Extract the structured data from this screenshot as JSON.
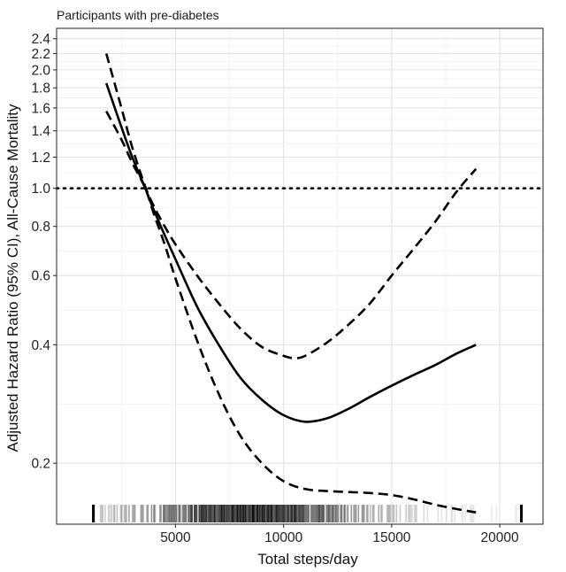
{
  "chart_data": {
    "type": "line",
    "title": "Participants with pre-diabetes",
    "xlabel": "Total steps/day",
    "ylabel": "Adjusted Hazard Ratio (95% CI), All-Cause Mortality",
    "xlim": [
      -500,
      22000
    ],
    "ylim": [
      0.14,
      2.55
    ],
    "y_scale": "log",
    "grid": true,
    "x_ticks": [
      5000,
      10000,
      15000,
      20000
    ],
    "y_ticks": [
      0.2,
      0.4,
      0.6,
      0.8,
      1.0,
      1.2,
      1.4,
      1.6,
      1.8,
      2.0,
      2.2,
      2.4
    ],
    "y_tick_labels": [
      "0.2",
      "0.4",
      "0.6",
      "0.8",
      "1.0",
      "1.2",
      "1.4",
      "1.6",
      "1.8",
      "2.0",
      "2.2",
      "2.4"
    ],
    "x_tick_labels": [
      "5000",
      "10000",
      "15000",
      "20000"
    ],
    "reference_line": {
      "y": 1.0,
      "style": "dotted"
    },
    "series": [
      {
        "role": "estimate",
        "line_style": "solid",
        "x": [
          1800,
          2500,
          3000,
          3600,
          4000,
          4500,
          5000,
          6000,
          7000,
          8000,
          9000,
          10000,
          11000,
          12000,
          13000,
          14000,
          15000,
          16000,
          17000,
          18000,
          18900
        ],
        "y": [
          1.85,
          1.43,
          1.2,
          1.0,
          0.88,
          0.76,
          0.66,
          0.5,
          0.4,
          0.33,
          0.29,
          0.265,
          0.255,
          0.26,
          0.275,
          0.295,
          0.315,
          0.335,
          0.355,
          0.38,
          0.4
        ]
      },
      {
        "role": "upper_95_ci",
        "line_style": "dashed",
        "x": [
          1800,
          2500,
          3000,
          3600,
          4000,
          4500,
          5000,
          6000,
          7000,
          8000,
          9000,
          10000,
          10500,
          11000,
          12000,
          13000,
          14000,
          15000,
          16000,
          17000,
          18000,
          18900
        ],
        "y": [
          2.2,
          1.6,
          1.27,
          1.01,
          0.9,
          0.8,
          0.72,
          0.6,
          0.51,
          0.44,
          0.395,
          0.375,
          0.37,
          0.375,
          0.405,
          0.45,
          0.51,
          0.6,
          0.7,
          0.82,
          0.98,
          1.12
        ]
      },
      {
        "role": "lower_95_ci",
        "line_style": "dashed",
        "x": [
          1800,
          2500,
          3000,
          3600,
          4000,
          4500,
          5000,
          6000,
          7000,
          8000,
          9000,
          10000,
          11000,
          12000,
          13000,
          14000,
          15000,
          16000,
          17000,
          18000,
          18900
        ],
        "y": [
          1.57,
          1.33,
          1.16,
          1.0,
          0.86,
          0.72,
          0.59,
          0.41,
          0.3,
          0.235,
          0.2,
          0.18,
          0.172,
          0.17,
          0.169,
          0.168,
          0.166,
          0.162,
          0.157,
          0.153,
          0.15
        ]
      }
    ],
    "rug": {
      "x_min": 1200,
      "x_max": 21000,
      "axis": "x"
    }
  }
}
